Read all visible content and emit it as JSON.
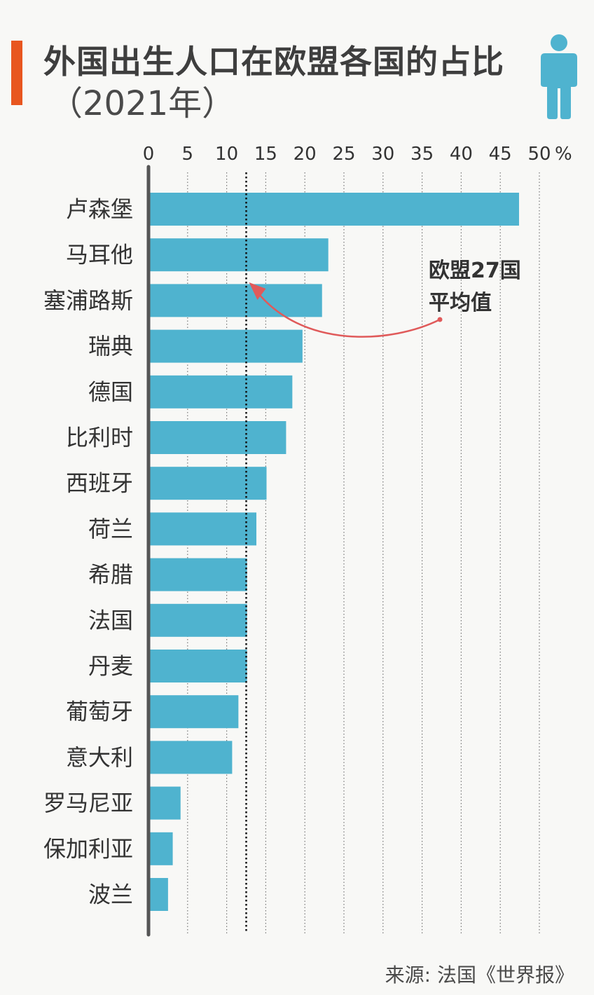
{
  "header": {
    "title": "外国出生人口在欧盟各国的占比",
    "subtitle": "（2021年）"
  },
  "icons": {
    "person": "person-icon"
  },
  "colors": {
    "accent": "#e8561f",
    "bar": "#4fb3cf",
    "person_icon": "#4fb3cf",
    "annotation_arrow": "#e05a5a",
    "axis": "#555555",
    "text": "#333333"
  },
  "chart_data": {
    "type": "bar",
    "orientation": "horizontal",
    "categories": [
      "卢森堡",
      "马耳他",
      "塞浦路斯",
      "瑞典",
      "德国",
      "比利时",
      "西班牙",
      "荷兰",
      "希腊",
      "法国",
      "丹麦",
      "葡萄牙",
      "意大利",
      "罗马尼亚",
      "保加利亚",
      "波兰"
    ],
    "values": [
      47.4,
      23.0,
      22.2,
      19.7,
      18.4,
      17.6,
      15.1,
      13.8,
      12.6,
      12.6,
      12.6,
      11.5,
      10.7,
      4.1,
      3.1,
      2.5
    ],
    "xlim": [
      0,
      50
    ],
    "xticks": [
      0,
      5,
      10,
      15,
      20,
      25,
      30,
      35,
      40,
      45,
      50
    ],
    "x_unit": "%",
    "grid": true,
    "gridline_style": "dotted",
    "reference_line": {
      "value": 12.5,
      "label_line1": "欧盟27国",
      "label_line2": "平均值"
    }
  },
  "footer": {
    "source": "来源: 法国《世界报》"
  }
}
